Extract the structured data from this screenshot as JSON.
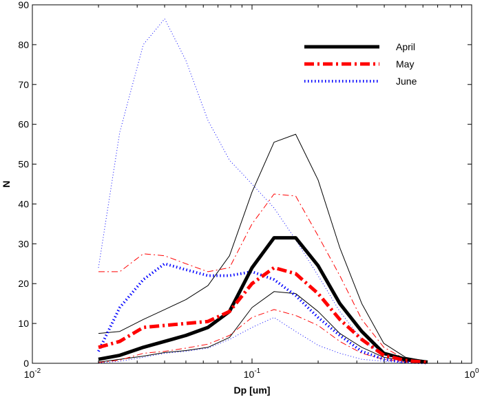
{
  "chart_data": {
    "type": "line",
    "title": "",
    "xlabel": "Dp [um]",
    "ylabel": "N",
    "xscale": "log",
    "xlim": [
      0.01,
      1
    ],
    "ylim": [
      0,
      90
    ],
    "grid": false,
    "legend": {
      "position": "top-right",
      "entries": [
        "April",
        "May",
        "June"
      ]
    },
    "x": [
      0.02,
      0.025,
      0.032,
      0.04,
      0.05,
      0.063,
      0.079,
      0.1,
      0.126,
      0.158,
      0.2,
      0.251,
      0.316,
      0.398,
      0.5,
      0.63
    ],
    "y_ticks": [
      "0",
      "10",
      "20",
      "30",
      "40",
      "50",
      "60",
      "70",
      "80",
      "90"
    ],
    "x_ticks": [
      {
        "base": "10",
        "exp": "-2"
      },
      {
        "base": "10",
        "exp": "-1"
      },
      {
        "base": "10",
        "exp": "0"
      }
    ],
    "series": [
      {
        "name": "April",
        "style": "solid-thick",
        "color": "#000000",
        "values": [
          1,
          2,
          4,
          5.5,
          7,
          9,
          13,
          24,
          31.5,
          31.5,
          24.5,
          15,
          8,
          2.5,
          1,
          0.3
        ]
      },
      {
        "name": "",
        "style": "solid-thin",
        "color": "#000000",
        "values": [
          7.5,
          8,
          11,
          13.5,
          16,
          19.5,
          27,
          43,
          55.5,
          57.5,
          46,
          29,
          15,
          5,
          1.5,
          0.5
        ]
      },
      {
        "name": "",
        "style": "solid-thin",
        "color": "#000000",
        "values": [
          0.3,
          1,
          1.8,
          2.7,
          3.2,
          4,
          6.5,
          14,
          18,
          17.5,
          13,
          7.5,
          4,
          1.5,
          0.5,
          0.1
        ]
      },
      {
        "name": "May",
        "style": "dashdot-thick",
        "color": "#ff0000",
        "values": [
          4,
          5.5,
          9,
          9.5,
          10,
          10.5,
          13,
          20,
          24,
          22.5,
          17.5,
          11,
          6,
          2,
          0.7,
          0.2
        ]
      },
      {
        "name": "",
        "style": "dashdot-thin",
        "color": "#ff0000",
        "values": [
          23,
          23,
          27.5,
          27,
          25,
          23,
          24,
          35,
          42.5,
          42,
          32,
          22,
          11,
          4,
          1,
          0.3
        ]
      },
      {
        "name": "",
        "style": "dashdot-thin",
        "color": "#ff0000",
        "values": [
          0.2,
          0.8,
          2.5,
          3,
          3.8,
          4.8,
          7,
          11.5,
          13.5,
          12,
          9.5,
          5.5,
          2.5,
          1,
          0.3,
          0.1
        ]
      },
      {
        "name": "June",
        "style": "dotted-thick",
        "color": "#0000ff",
        "values": [
          3,
          14,
          21,
          25,
          23.5,
          22,
          22,
          23,
          21,
          17,
          11.5,
          7,
          3,
          1,
          0.3,
          0.1
        ]
      },
      {
        "name": "",
        "style": "dotted-thin",
        "color": "#0000ff",
        "values": [
          24,
          58,
          80,
          86.5,
          76,
          61,
          51,
          45,
          39,
          31,
          22,
          13,
          6,
          2,
          0.6,
          0.2
        ]
      },
      {
        "name": "",
        "style": "dotted-thin",
        "color": "#0000ff",
        "values": [
          0.1,
          0.5,
          1.5,
          2.5,
          3,
          3.8,
          6,
          9,
          11.5,
          8,
          4.5,
          2.5,
          1,
          0.5,
          0.1,
          0.05
        ]
      }
    ]
  }
}
